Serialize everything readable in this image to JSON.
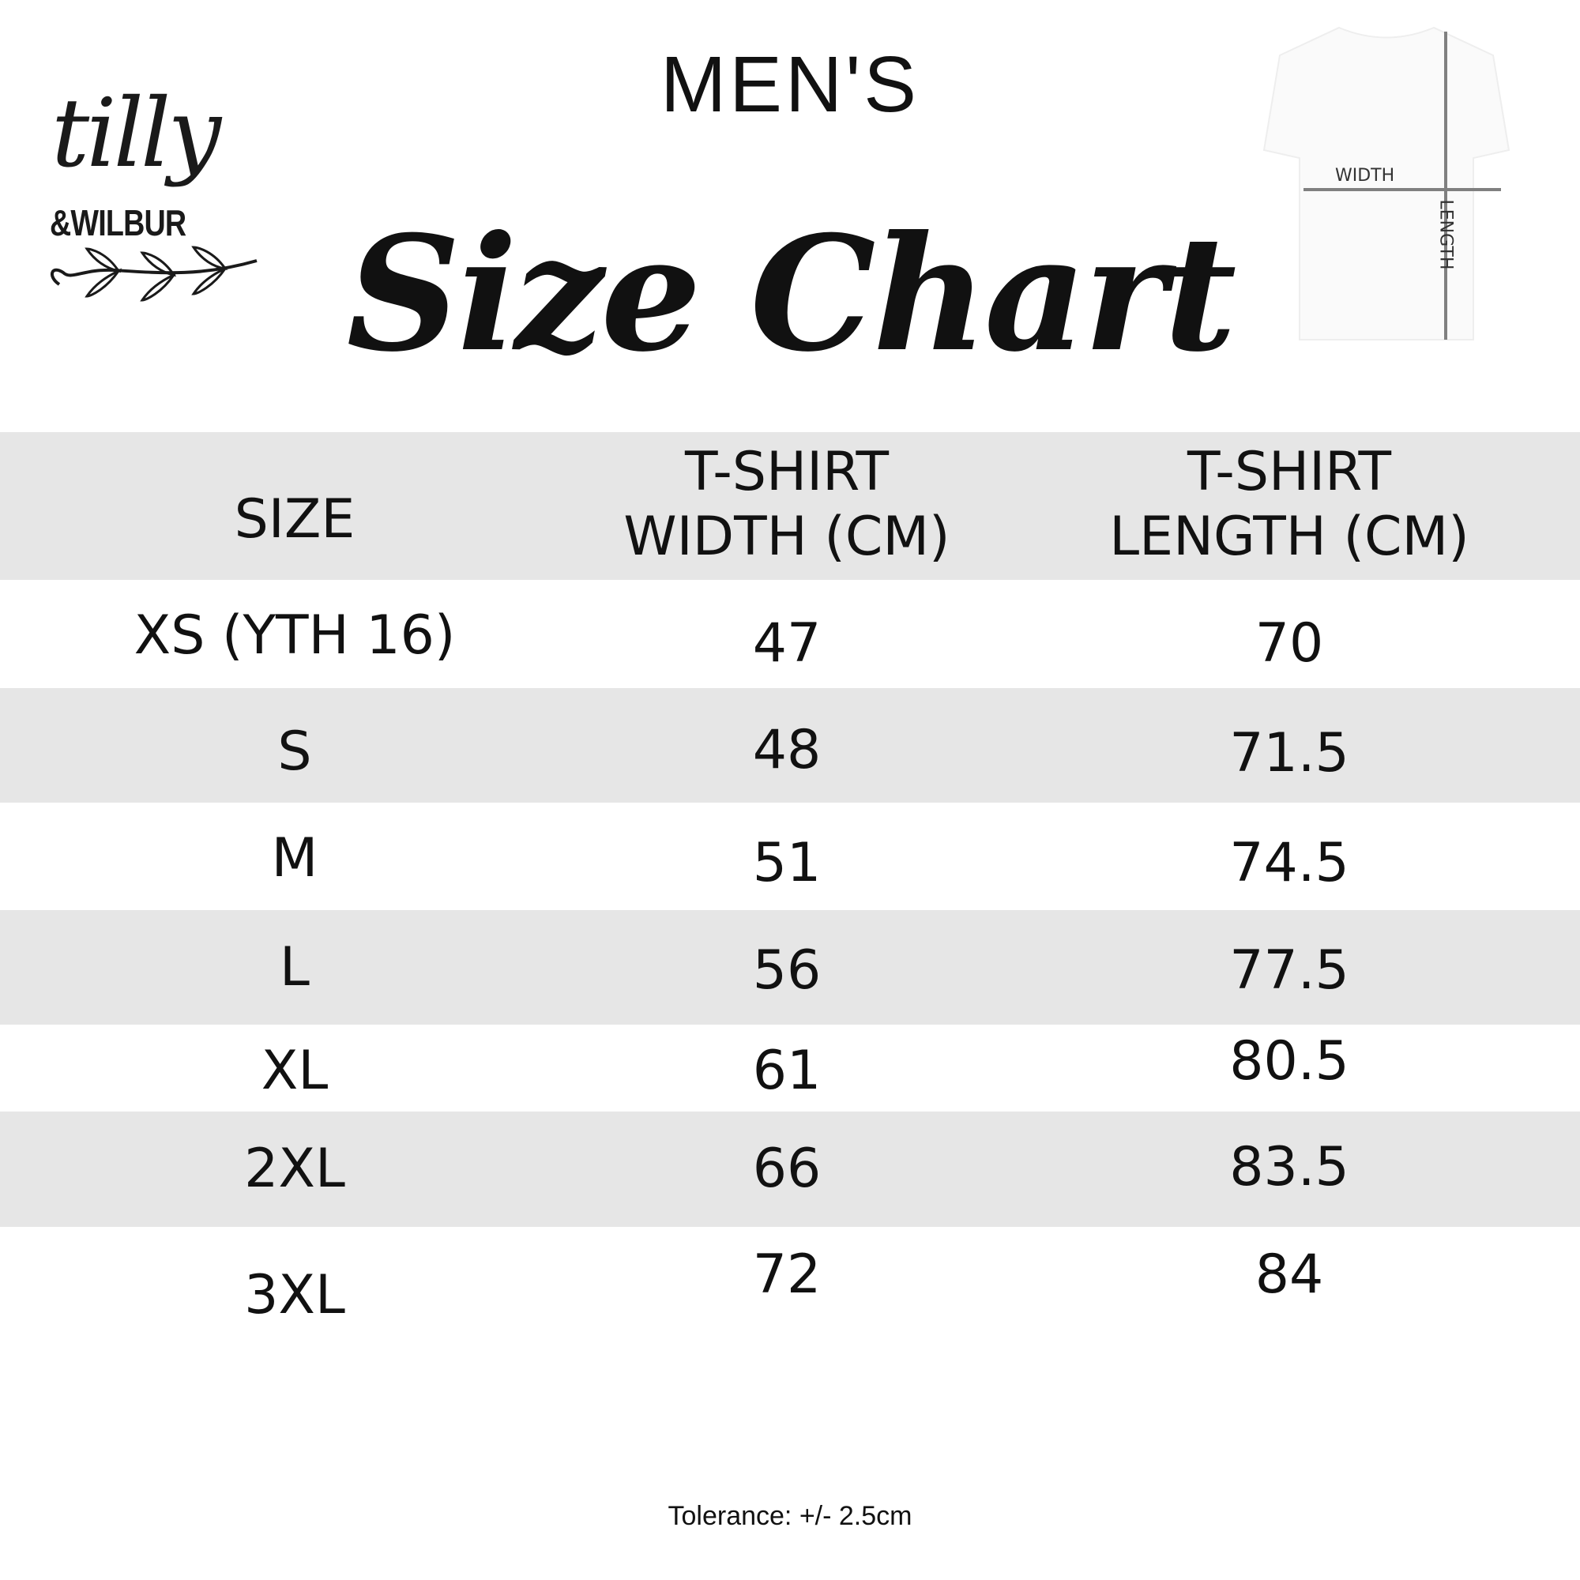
{
  "logo": {
    "line1": "tilly",
    "line2": "&WILBUR"
  },
  "header": {
    "subtitle": "MEN'S",
    "title": "Size Chart"
  },
  "diagram": {
    "width_label": "WIDTH",
    "length_label": "LENGTH"
  },
  "table": {
    "columns": [
      "SIZE",
      "T-SHIRT\nWIDTH (CM)",
      "T-SHIRT\nLENGTH (CM)"
    ],
    "rows": [
      [
        "XS (YTH 16)",
        "47",
        "70"
      ],
      [
        "S",
        "48",
        "71.5"
      ],
      [
        "M",
        "51",
        "74.5"
      ],
      [
        "L",
        "56",
        "77.5"
      ],
      [
        "XL",
        "61",
        "80.5"
      ],
      [
        "2XL",
        "66",
        "83.5"
      ],
      [
        "3XL",
        "72",
        "84"
      ]
    ]
  },
  "footer": {
    "tolerance": "Tolerance: +/- 2.5cm"
  },
  "colors": {
    "band": "#e6e6e6",
    "text": "#111111",
    "measure_line": "#808080"
  }
}
